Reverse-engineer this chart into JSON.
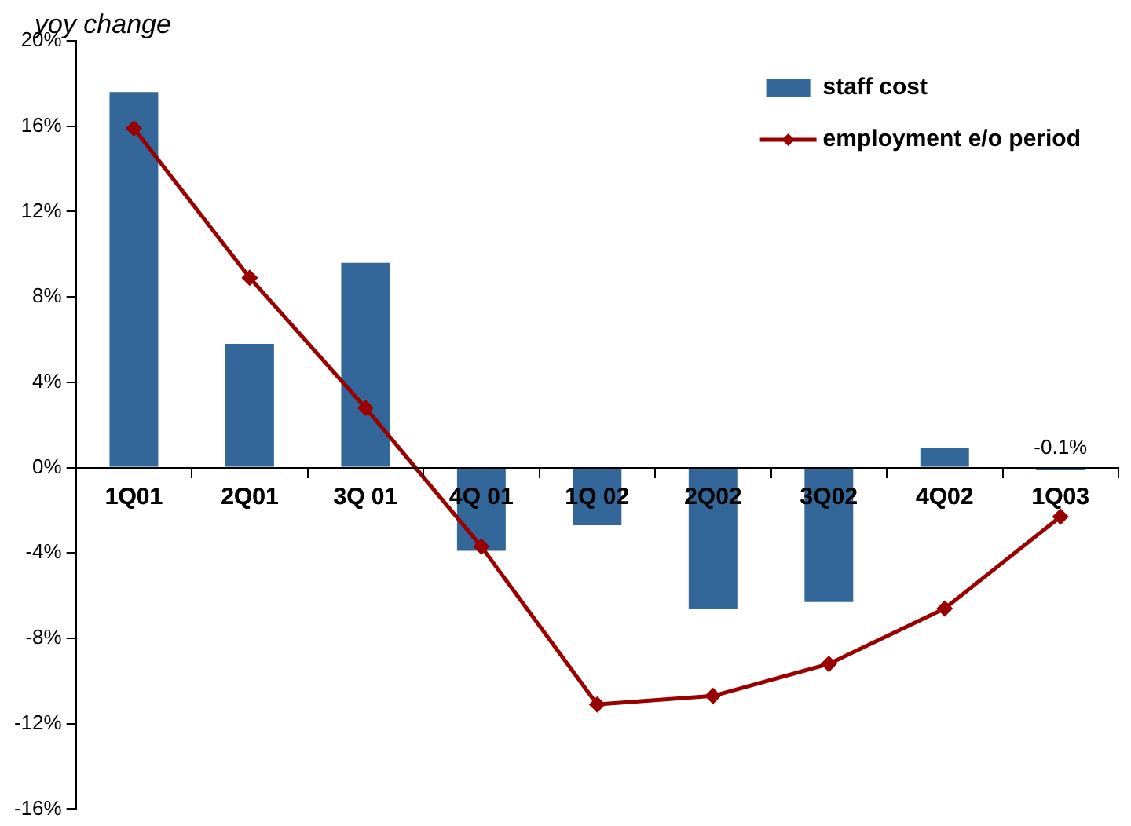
{
  "chart_data": {
    "type": "bar",
    "ylabel": "yoy change",
    "categories": [
      "1Q01",
      "2Q01",
      "3Q 01",
      "4Q 01",
      "1Q 02",
      "2Q02",
      "3Q02",
      "4Q02",
      "1Q03"
    ],
    "series": [
      {
        "name": "staff cost",
        "color": "#336699",
        "values": [
          17.6,
          5.8,
          9.6,
          -3.9,
          -2.7,
          -6.6,
          -6.3,
          0.9,
          -0.1
        ],
        "value_labels": [
          null,
          null,
          null,
          null,
          null,
          null,
          null,
          null,
          "-0.1%"
        ]
      },
      {
        "name": "employment e/o period",
        "type": "line",
        "color": "#990000",
        "marker": "diamond",
        "values": [
          15.9,
          8.9,
          2.8,
          -3.7,
          -11.1,
          -10.7,
          -9.2,
          -6.6,
          -2.3
        ]
      }
    ],
    "ylim": [
      -16,
      20
    ],
    "yticks": [
      {
        "value": -16,
        "label": "-16%"
      },
      {
        "value": -12,
        "label": "-12%"
      },
      {
        "value": -8,
        "label": "-8%"
      },
      {
        "value": -4,
        "label": "-4%"
      },
      {
        "value": 0,
        "label": "0%"
      },
      {
        "value": 4,
        "label": "4%"
      },
      {
        "value": 8,
        "label": "8%"
      },
      {
        "value": 12,
        "label": "12%"
      },
      {
        "value": 16,
        "label": "16%"
      },
      {
        "value": 20,
        "label": "20%"
      }
    ],
    "grid": false,
    "legend": "top right"
  }
}
